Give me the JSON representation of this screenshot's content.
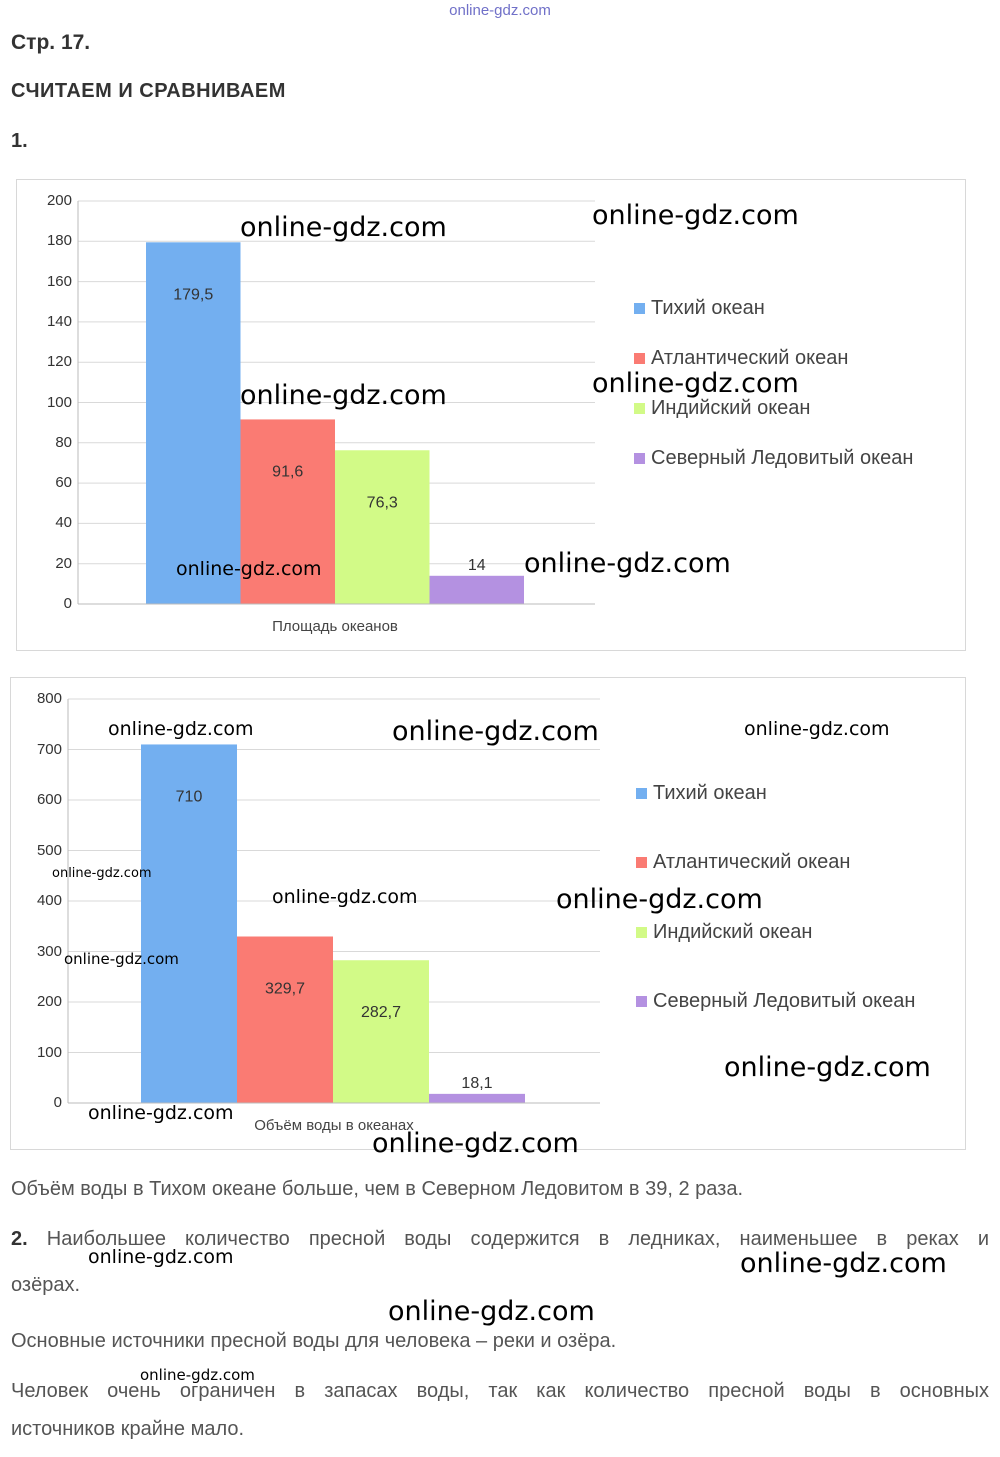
{
  "site": "online-gdz.com",
  "page_ref": "Стр. 17.",
  "section_title": "СЧИТАЕМ И СРАВНИВАЕМ",
  "task1_number": "1.",
  "watermark": "online-gdz.com",
  "legend": [
    "Тихий океан",
    "Атлантический океан",
    "Индийский океан",
    "Северный Ледовитый океан"
  ],
  "chart_data": [
    {
      "type": "bar",
      "xlabel": "Площадь океанов",
      "ylim": [
        0,
        200
      ],
      "yticks": [
        0,
        20,
        40,
        60,
        80,
        100,
        120,
        140,
        160,
        180,
        200
      ],
      "series": [
        {
          "name": "Тихий океан",
          "values": [
            179.5
          ],
          "label": "179,5",
          "color": "#73aff0"
        },
        {
          "name": "Атлантический океан",
          "values": [
            91.6
          ],
          "label": "91,6",
          "color": "#fa7b73"
        },
        {
          "name": "Индийский океан",
          "values": [
            76.3
          ],
          "label": "76,3",
          "color": "#d2fa87"
        },
        {
          "name": "Северный Ледовитый океан",
          "values": [
            14
          ],
          "label": "14",
          "color": "#b491e1"
        }
      ],
      "grid": true,
      "legend_position": "right"
    },
    {
      "type": "bar",
      "xlabel": "Объём воды в океанах",
      "ylim": [
        0,
        800
      ],
      "yticks": [
        0,
        100,
        200,
        300,
        400,
        500,
        600,
        700,
        800
      ],
      "series": [
        {
          "name": "Тихий океан",
          "values": [
            710
          ],
          "label": "710",
          "color": "#73aff0"
        },
        {
          "name": "Атлантический океан",
          "values": [
            329.7
          ],
          "label": "329,7",
          "color": "#fa7b73"
        },
        {
          "name": "Индийский океан",
          "values": [
            282.7
          ],
          "label": "282,7",
          "color": "#d2fa87"
        },
        {
          "name": "Северный Ледовитый океан",
          "values": [
            18.1
          ],
          "label": "18,1",
          "color": "#b491e1"
        }
      ],
      "grid": true,
      "legend_position": "right"
    }
  ],
  "answer_line1": "Объём воды в Тихом океане больше, чем в Северном Ледовитом в 39, 2 раза.",
  "task2_number": "2.",
  "task2_text_part1": "Наибольшее количество пресной воды содержится в ледниках, наименьшее в реках и",
  "task2_text_part2": "озёрах.",
  "answer_line3": "Основные источники пресной воды для человека – реки и озёра.",
  "answer_line4_part1": "Человек очень ограничен в запасах воды, так как количество пресной воды в основных",
  "answer_line4_part2": "источников крайне мало."
}
